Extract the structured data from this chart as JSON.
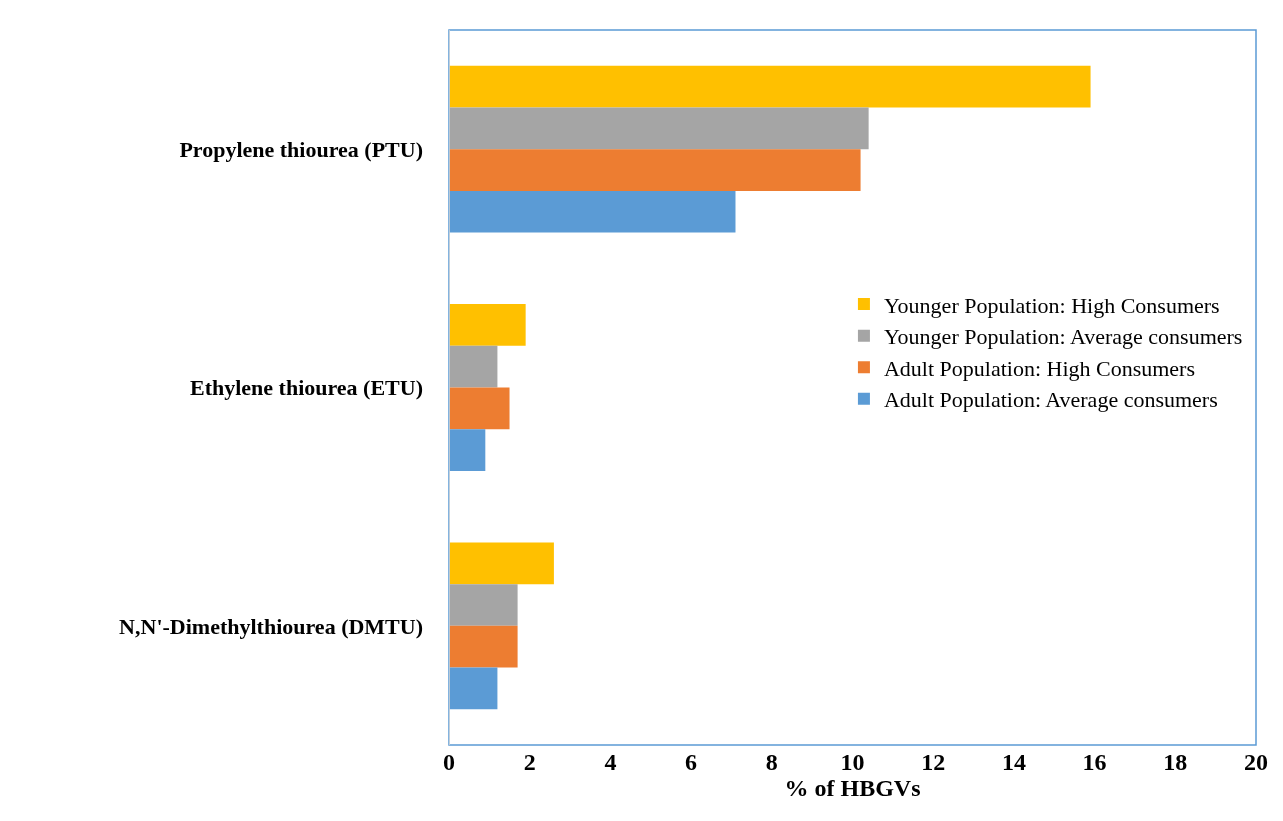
{
  "chart_data": {
    "type": "bar",
    "orientation": "horizontal",
    "xlabel": "% of HBGVs",
    "categories": [
      "Propylene thiourea (PTU)",
      "Ethylene thiourea (ETU)",
      "N,N'-Dimethylthiourea (DMTU)"
    ],
    "series": [
      {
        "name": "Younger Population: High Consumers",
        "color": "#ffc000",
        "values": [
          15.9,
          1.9,
          2.6
        ]
      },
      {
        "name": "Younger Population: Average consumers",
        "color": "#a5a5a5",
        "values": [
          10.4,
          1.2,
          1.7
        ]
      },
      {
        "name": "Adult Population: High Consumers",
        "color": "#ed7d31",
        "values": [
          10.2,
          1.5,
          1.7
        ]
      },
      {
        "name": "Adult Population: Average consumers",
        "color": "#5b9bd5",
        "values": [
          7.1,
          0.9,
          1.2
        ]
      }
    ],
    "xlim": [
      0,
      20
    ],
    "xticks": [
      0,
      2,
      4,
      6,
      8,
      10,
      12,
      14,
      16,
      18,
      20
    ],
    "legend": "right"
  }
}
